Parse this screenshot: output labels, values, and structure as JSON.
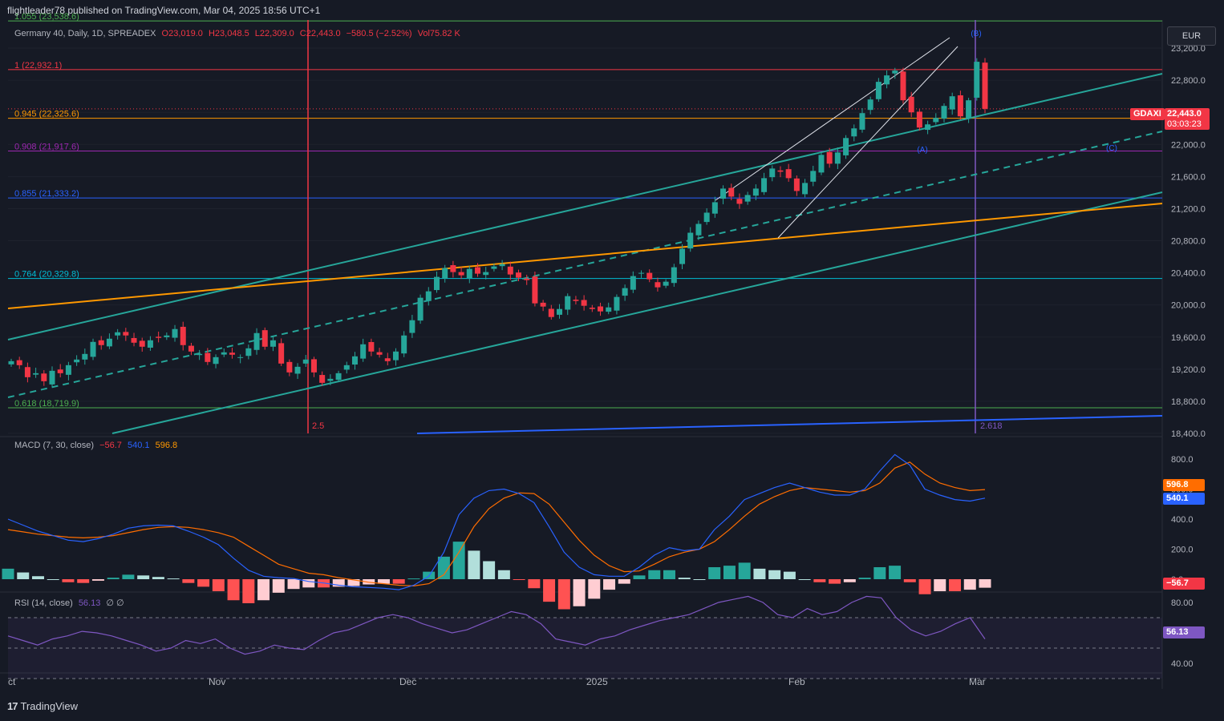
{
  "header": {
    "publish_text": "flightleader78 published on TradingView.com, Mar 04, 2025 18:56 UTC+1",
    "currency": "EUR",
    "footer_brand": "TradingView"
  },
  "colors": {
    "background": "#161a25",
    "up": "#26a69a",
    "down": "#f23645",
    "macd_line": "#2962ff",
    "signal_line": "#ff6d00",
    "rsi_line": "#7e57c2",
    "channel": "#26a69a",
    "orange_trend": "#ff9800",
    "blue_trend": "#2962ff"
  },
  "legend": {
    "symbol": "Germany 40, Daily, 1D, SPREADEX",
    "open": "O23,019.0",
    "high": "H23,048.5",
    "low": "L22,309.0",
    "close": "C22,443.0",
    "change": "−580.5 (−2.52%)",
    "volume": "Vol75.82 K"
  },
  "price_panel": {
    "price_tag_symbol": "GDAXI",
    "last_price": "22,443.0",
    "countdown": "03:03:23",
    "vline_labels": [
      "2.5",
      "2.618"
    ],
    "wave_labels": [
      "(A)",
      "(B)",
      "(C)"
    ]
  },
  "macd_panel": {
    "title": "MACD (7, 30, close)",
    "hist_value": "−56.7",
    "macd_value": "540.1",
    "signal_value": "596.8"
  },
  "rsi_panel": {
    "title": "RSI (14, close)",
    "value": "56.13",
    "extra": "∅ ∅"
  },
  "chart_data": [
    {
      "type": "candlestick",
      "title": "Germany 40, Daily, 1D, SPREADEX",
      "ylim": [
        18400,
        23500
      ],
      "y_ticks": [
        "18,400.0",
        "18,800.0",
        "19,200.0",
        "19,600.0",
        "20,000.0",
        "20,400.0",
        "20,800.0",
        "21,200.0",
        "21,600.0",
        "22,000.0",
        "22,400.0",
        "22,800.0",
        "23,200.0"
      ],
      "x_ticks": [
        "ct",
        "Nov",
        "Dec",
        "2025",
        "Feb",
        "Mar"
      ],
      "fib_levels": [
        {
          "label": "1.055 (23,538.6)",
          "value": 23538.6,
          "color": "#4caf50"
        },
        {
          "label": "1 (22,932.1)",
          "value": 22932.1,
          "color": "#f23645"
        },
        {
          "label": "0.945 (22,325.6)",
          "value": 22325.6,
          "color": "#ff9800"
        },
        {
          "label": "0.908 (21,917.6)",
          "value": 21917.6,
          "color": "#9c27b0"
        },
        {
          "label": "0.855 (21,333.2)",
          "value": 21333.2,
          "color": "#2962ff"
        },
        {
          "label": "0.764 (20,329.8)",
          "value": 20329.8,
          "color": "#00bcd4"
        },
        {
          "label": "0.618 (18,719.9)",
          "value": 18719.9,
          "color": "#4caf50"
        }
      ],
      "closes": [
        19300,
        19250,
        19100,
        19150,
        19050,
        19180,
        19150,
        19250,
        19320,
        19390,
        19540,
        19500,
        19580,
        19660,
        19620,
        19530,
        19480,
        19560,
        19590,
        19620,
        19700,
        19500,
        19420,
        19390,
        19290,
        19350,
        19410,
        19380,
        19350,
        19460,
        19650,
        19480,
        19560,
        19270,
        19160,
        19230,
        19320,
        19160,
        19030,
        19080,
        19150,
        19250,
        19360,
        19510,
        19420,
        19380,
        19300,
        19420,
        19620,
        19810,
        20090,
        20170,
        20350,
        20460,
        20410,
        20370,
        20450,
        20390,
        20410,
        20480,
        20510,
        20380,
        20340,
        20310,
        20020,
        19980,
        19850,
        19950,
        20110,
        20050,
        19990,
        19950,
        19920,
        19970,
        20100,
        20210,
        20360,
        20400,
        20320,
        20220,
        20290,
        20470,
        20700,
        20900,
        21010,
        21150,
        21280,
        21450,
        21350,
        21260,
        21370,
        21450,
        21580,
        21700,
        21660,
        21580,
        21420,
        21520,
        21670,
        21870,
        21760,
        21900,
        22080,
        22200,
        22390,
        22560,
        22780,
        22860,
        22920,
        22550,
        22400,
        22210,
        22250,
        22330,
        22480,
        22600,
        22350,
        22550,
        23030,
        22443
      ]
    },
    {
      "type": "line",
      "title": "MACD (7, 30, close)",
      "ylim": [
        0,
        800
      ],
      "y_ticks": [
        "0.0",
        "200.0",
        "400.0",
        "600.0",
        "800.0"
      ],
      "series": [
        {
          "name": "MACD",
          "values": [
            400,
            360,
            320,
            290,
            260,
            250,
            270,
            300,
            340,
            355,
            360,
            355,
            320,
            280,
            230,
            140,
            60,
            20,
            10,
            5,
            -15,
            -25,
            -40,
            -50,
            -55,
            -60,
            -70,
            -40,
            20,
            180,
            430,
            540,
            590,
            600,
            570,
            510,
            350,
            180,
            80,
            30,
            20,
            20,
            80,
            160,
            210,
            190,
            200,
            330,
            420,
            530,
            570,
            610,
            640,
            610,
            580,
            560,
            560,
            600,
            720,
            830,
            760,
            600,
            560,
            530,
            520,
            540
          ]
        },
        {
          "name": "Signal",
          "values": [
            330,
            315,
            300,
            290,
            280,
            275,
            280,
            290,
            310,
            330,
            345,
            350,
            345,
            330,
            310,
            280,
            220,
            160,
            100,
            70,
            40,
            30,
            10,
            -5,
            -20,
            -30,
            -40,
            -45,
            -30,
            30,
            180,
            350,
            470,
            540,
            575,
            570,
            500,
            380,
            260,
            160,
            90,
            50,
            55,
            100,
            150,
            180,
            200,
            250,
            330,
            420,
            500,
            550,
            590,
            610,
            600,
            590,
            580,
            590,
            640,
            740,
            780,
            700,
            640,
            610,
            590,
            596.8
          ]
        }
      ],
      "histogram": [
        70,
        45,
        20,
        0,
        -20,
        -25,
        -10,
        10,
        30,
        25,
        15,
        5,
        -25,
        -50,
        -80,
        -140,
        -160,
        -140,
        -90,
        -65,
        -55,
        -55,
        -50,
        -45,
        -35,
        -30,
        -30,
        5,
        50,
        150,
        250,
        190,
        120,
        60,
        -5,
        -60,
        -150,
        -200,
        -180,
        -130,
        -70,
        -30,
        25,
        60,
        60,
        10,
        0,
        80,
        90,
        110,
        70,
        60,
        50,
        0,
        -20,
        -30,
        -20,
        10,
        80,
        90,
        -20,
        -100,
        -80,
        -80,
        -70,
        -56.7
      ]
    },
    {
      "type": "line",
      "title": "RSI (14, close)",
      "ylim": [
        20,
        90
      ],
      "y_ticks": [
        "40.00",
        "60.00",
        "80.00"
      ],
      "series": [
        {
          "name": "RSI",
          "values": [
            58,
            55,
            52,
            56,
            58,
            61,
            60,
            58,
            55,
            52,
            48,
            50,
            55,
            53,
            56,
            50,
            46,
            48,
            52,
            50,
            49,
            55,
            60,
            62,
            66,
            70,
            72,
            70,
            66,
            63,
            60,
            62,
            66,
            70,
            74,
            72,
            66,
            56,
            54,
            52,
            56,
            58,
            62,
            65,
            68,
            70,
            72,
            76,
            80,
            82,
            84,
            80,
            72,
            70,
            76,
            72,
            74,
            80,
            84,
            83,
            70,
            62,
            58,
            61,
            66,
            70,
            56
          ]
        }
      ],
      "levels": [
        70,
        50,
        30
      ]
    }
  ]
}
